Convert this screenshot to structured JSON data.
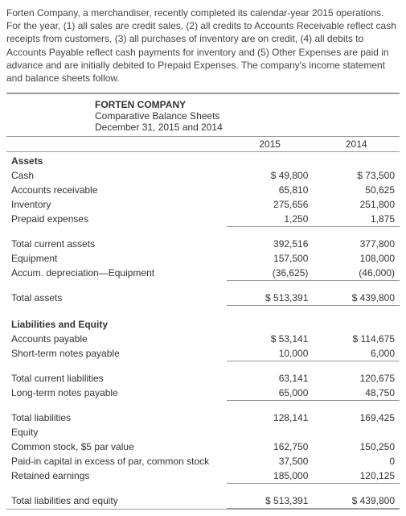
{
  "intro": "Forten Company, a merchandiser, recently completed its calendar-year 2015 operations. For the year, (1) all sales are credit sales, (2) all credits to Accounts Receivable reflect cash receipts from customers, (3) all purchases of inventory are on credit, (4) all debits to Accounts Payable reflect cash payments for inventory and (5) Other Expenses are paid in advance and are initially debited to Prepaid Expenses. The company's income statement and balance sheets follow.",
  "company": "FORTEN COMPANY",
  "title": "Comparative Balance Sheets",
  "date_line": "December 31, 2015 and 2014",
  "col1": "2015",
  "col2": "2014",
  "sections": {
    "assets_header": "Assets",
    "liab_header": "Liabilities and Equity",
    "equity_header": "Equity"
  },
  "rows": {
    "cash": {
      "label": "Cash",
      "y2015": "$  49,800",
      "y2014": "$  73,500"
    },
    "ar": {
      "label": "Accounts receivable",
      "y2015": "65,810",
      "y2014": "50,625"
    },
    "inv": {
      "label": "Inventory",
      "y2015": "275,656",
      "y2014": "251,800"
    },
    "prepaid": {
      "label": "Prepaid expenses",
      "y2015": "1,250",
      "y2014": "1,875"
    },
    "tca": {
      "label": "Total current assets",
      "y2015": "392,516",
      "y2014": "377,800"
    },
    "equip": {
      "label": "Equipment",
      "y2015": "157,500",
      "y2014": "108,000"
    },
    "accdep": {
      "label": "Accum. depreciation—Equipment",
      "y2015": "(36,625)",
      "y2014": "(46,000)"
    },
    "ta": {
      "label": "Total assets",
      "y2015": "$ 513,391",
      "y2014": "$ 439,800"
    },
    "ap": {
      "label": "Accounts payable",
      "y2015": "$  53,141",
      "y2014": "$ 114,675"
    },
    "stnp": {
      "label": "Short-term notes payable",
      "y2015": "10,000",
      "y2014": "6,000"
    },
    "tcl": {
      "label": "Total current liabilities",
      "y2015": "63,141",
      "y2014": "120,675"
    },
    "ltnp": {
      "label": "Long-term notes payable",
      "y2015": "65,000",
      "y2014": "48,750"
    },
    "tl": {
      "label": "Total liabilities",
      "y2015": "128,141",
      "y2014": "169,425"
    },
    "cs": {
      "label": "Common stock, $5 par value",
      "y2015": "162,750",
      "y2014": "150,250"
    },
    "pic": {
      "label": "Paid-in capital in excess of par, common stock",
      "y2015": "37,500",
      "y2014": "0"
    },
    "re": {
      "label": "Retained earnings",
      "y2015": "185,000",
      "y2014": "120,125"
    },
    "tle": {
      "label": "Total liabilities and equity",
      "y2015": "$ 513,391",
      "y2014": "$ 439,800"
    }
  }
}
